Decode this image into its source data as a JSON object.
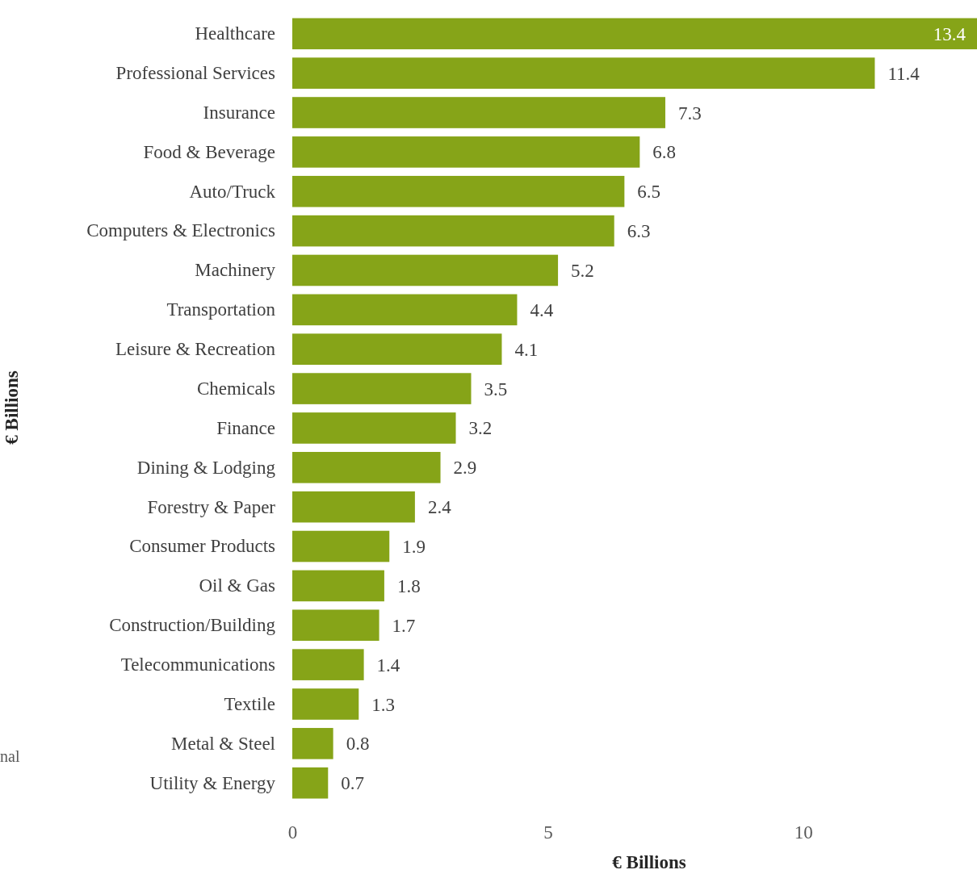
{
  "chart_data": {
    "type": "bar",
    "orientation": "horizontal",
    "categories": [
      "Healthcare",
      "Professional Services",
      "Insurance",
      "Food & Beverage",
      "Auto/Truck",
      "Computers & Electronics",
      "Machinery",
      "Transportation",
      "Leisure & Recreation",
      "Chemicals",
      "Finance",
      "Dining & Lodging",
      "Forestry & Paper",
      "Consumer Products",
      "Oil & Gas",
      "Construction/Building",
      "Telecommunications",
      "Textile",
      "Metal & Steel",
      "Utility & Energy"
    ],
    "values": [
      13.4,
      11.4,
      7.3,
      6.8,
      6.5,
      6.3,
      5.2,
      4.4,
      4.1,
      3.5,
      3.2,
      2.9,
      2.4,
      1.9,
      1.8,
      1.7,
      1.4,
      1.3,
      0.8,
      0.7
    ],
    "color": "#86a418",
    "xlim": [
      0,
      13.4
    ],
    "xticks": [
      0,
      5,
      10
    ],
    "xlabel": "€ Billions",
    "ylabel": "€ Billions",
    "data_labels": true,
    "annotations": [
      "nal"
    ]
  }
}
